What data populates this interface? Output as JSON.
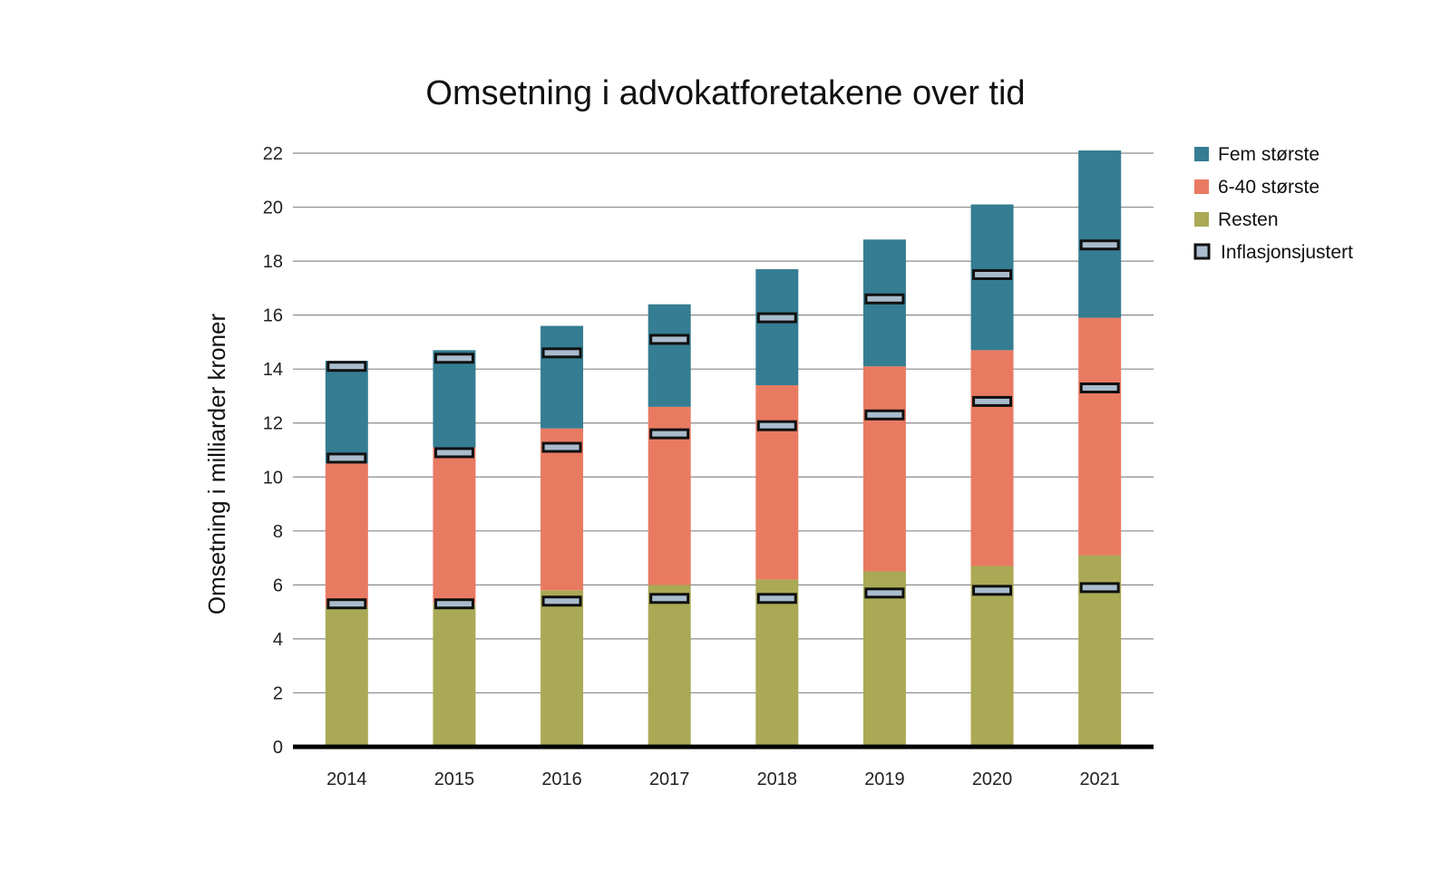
{
  "chart_data": {
    "type": "bar",
    "stacked": true,
    "title": "Omsetning i advokatforetakene over tid",
    "xlabel": "",
    "ylabel": "Omsetning i milliarder kroner",
    "ylim": [
      0,
      22
    ],
    "yticks": [
      "0",
      "2",
      "4",
      "6",
      "8",
      "10",
      "12",
      "14",
      "16",
      "18",
      "20",
      "22"
    ],
    "grid": true,
    "legend_position": "right",
    "categories": [
      "2014",
      "2015",
      "2016",
      "2017",
      "2018",
      "2019",
      "2020",
      "2021"
    ],
    "series": [
      {
        "name": "Resten",
        "color": "#aaa955",
        "values": [
          5.2,
          5.3,
          5.8,
          6.0,
          6.2,
          6.5,
          6.7,
          7.1
        ]
      },
      {
        "name": "6-40 største",
        "color": "#e97a62",
        "values": [
          5.3,
          5.8,
          6.0,
          6.6,
          7.2,
          7.6,
          8.0,
          8.8
        ]
      },
      {
        "name": "Fem største",
        "color": "#357d92",
        "values": [
          3.8,
          3.6,
          3.8,
          3.8,
          4.3,
          4.7,
          5.4,
          6.2
        ]
      }
    ],
    "inflation_adjusted": {
      "name": "Inflasjonsjustert",
      "color": "#a9bccd",
      "border_color": "#111111",
      "resten": [
        5.3,
        5.3,
        5.4,
        5.5,
        5.5,
        5.7,
        5.8,
        5.9
      ],
      "mid": [
        10.7,
        10.9,
        11.1,
        11.6,
        11.9,
        12.3,
        12.8,
        13.3
      ],
      "top": [
        14.1,
        14.4,
        14.6,
        15.1,
        15.9,
        16.6,
        17.5,
        18.6
      ]
    },
    "legend": [
      "Fem største",
      "6-40 største",
      "Resten",
      "Inflasjonsjustert"
    ]
  }
}
